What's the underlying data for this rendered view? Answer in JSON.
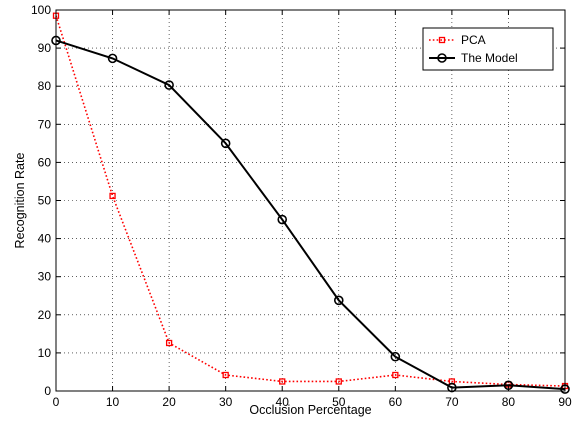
{
  "chart_data": {
    "type": "line",
    "title": "",
    "xlabel": "Occlusion Percentage",
    "ylabel": "Recognition Rate",
    "xlim": [
      0,
      90
    ],
    "ylim": [
      0,
      100
    ],
    "xticks": [
      0,
      10,
      20,
      30,
      40,
      50,
      60,
      70,
      80,
      90
    ],
    "yticks": [
      0,
      10,
      20,
      30,
      40,
      50,
      60,
      70,
      80,
      90,
      100
    ],
    "grid": true,
    "legend_position": "top-right",
    "x": [
      0,
      10,
      20,
      30,
      40,
      50,
      60,
      70,
      80,
      90
    ],
    "series": [
      {
        "name": "PCA",
        "values": [
          98.5,
          51.2,
          12.6,
          4.2,
          2.5,
          2.5,
          4.2,
          2.5,
          1.7,
          1.3
        ],
        "color": "#ff0000",
        "line_style": "dotted",
        "marker": "square"
      },
      {
        "name": "The Model",
        "values": [
          92.0,
          87.3,
          80.3,
          65.0,
          45.0,
          23.8,
          9.0,
          0.9,
          1.5,
          0.5
        ],
        "color": "#000000",
        "line_style": "solid",
        "marker": "circle"
      }
    ]
  }
}
